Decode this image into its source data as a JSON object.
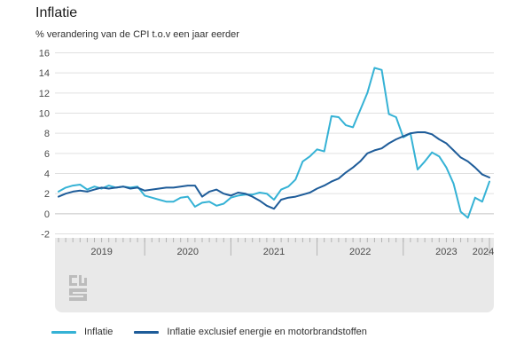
{
  "page": {
    "title": "Inflatie",
    "subtitle": "% verandering van de CPI t.o.v een jaar eerder"
  },
  "chart_data": {
    "type": "line",
    "title": "Inflatie",
    "subtitle": "% verandering van de CPI t.o.v een jaar eerder",
    "frequency": "monthly",
    "x_start": "2019-01",
    "x_end": "2024-01",
    "year_ticks": [
      "2019",
      "2020",
      "2021",
      "2022",
      "2023",
      "2024"
    ],
    "ylim": [
      -2,
      16
    ],
    "yticks": [
      16,
      14,
      12,
      10,
      8,
      6,
      4,
      2,
      0,
      -2
    ],
    "grid": true,
    "legend_position": "bottom",
    "series": [
      {
        "name": "Inflatie",
        "color": "#35b2d5",
        "values": [
          2.2,
          2.6,
          2.8,
          2.9,
          2.4,
          2.7,
          2.5,
          2.8,
          2.6,
          2.7,
          2.6,
          2.7,
          1.8,
          1.6,
          1.4,
          1.2,
          1.2,
          1.6,
          1.7,
          0.7,
          1.1,
          1.2,
          0.8,
          1.0,
          1.6,
          1.8,
          1.9,
          1.9,
          2.1,
          2.0,
          1.4,
          2.4,
          2.7,
          3.4,
          5.2,
          5.7,
          6.4,
          6.2,
          9.7,
          9.6,
          8.8,
          8.6,
          10.3,
          12.0,
          14.5,
          14.3,
          9.9,
          9.6,
          7.6,
          8.0,
          4.4,
          5.2,
          6.1,
          5.7,
          4.6,
          3.0,
          0.2,
          -0.4,
          1.6,
          1.2,
          3.2
        ]
      },
      {
        "name": "Inflatie exclusief energie en motorbrandstoffen",
        "color": "#1e5c99",
        "values": [
          1.7,
          2.0,
          2.2,
          2.3,
          2.2,
          2.4,
          2.6,
          2.5,
          2.6,
          2.7,
          2.5,
          2.6,
          2.3,
          2.4,
          2.5,
          2.6,
          2.6,
          2.7,
          2.8,
          2.8,
          1.7,
          2.2,
          2.4,
          2.0,
          1.8,
          2.1,
          2.0,
          1.7,
          1.3,
          0.8,
          0.5,
          1.4,
          1.6,
          1.7,
          1.9,
          2.1,
          2.5,
          2.8,
          3.2,
          3.5,
          4.1,
          4.6,
          5.2,
          6.0,
          6.3,
          6.5,
          7.0,
          7.4,
          7.7,
          8.0,
          8.1,
          8.1,
          7.9,
          7.4,
          7.0,
          6.3,
          5.6,
          5.2,
          4.6,
          3.9,
          3.6
        ]
      }
    ]
  },
  "colors": {
    "axis_band": "#e9e9e9",
    "gridline": "#e0e0e0",
    "zero_line": "#c4c4c4",
    "tick": "#b3b3b3",
    "axis_text": "#4a4a4a",
    "logo_gray": "#bcbcbc"
  },
  "logo": {
    "name": "cbs-logo"
  }
}
